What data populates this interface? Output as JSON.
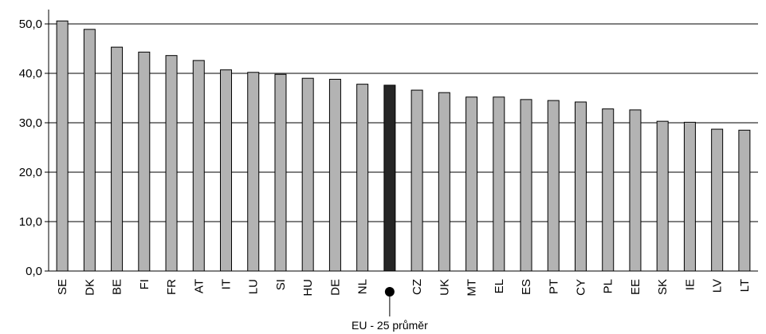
{
  "chart_data": {
    "type": "bar",
    "title": "",
    "xlabel": "",
    "ylabel": "",
    "ylim": [
      0,
      50
    ],
    "yticks": [
      "0,0",
      "10,0",
      "20,0",
      "30,0",
      "40,0",
      "50,0"
    ],
    "grid": "horizontal",
    "legend": "none",
    "categories": [
      "SE",
      "DK",
      "BE",
      "FI",
      "FR",
      "AT",
      "IT",
      "LU",
      "SI",
      "HU",
      "DE",
      "NL",
      "EU-25",
      "CZ",
      "UK",
      "MT",
      "EL",
      "ES",
      "PT",
      "CY",
      "PL",
      "EE",
      "SK",
      "IE",
      "LV",
      "LT"
    ],
    "tick_labels": [
      "SE",
      "DK",
      "BE",
      "FI",
      "FR",
      "AT",
      "IT",
      "LU",
      "SI",
      "HU",
      "DE",
      "NL",
      "",
      "CZ",
      "UK",
      "MT",
      "EL",
      "ES",
      "PT",
      "CY",
      "PL",
      "EE",
      "SK",
      "IE",
      "LV",
      "LT"
    ],
    "values": [
      50.6,
      48.9,
      45.3,
      44.3,
      43.6,
      42.6,
      40.7,
      40.2,
      39.8,
      39.0,
      38.8,
      37.8,
      37.6,
      36.6,
      36.1,
      35.2,
      35.2,
      34.7,
      34.5,
      34.2,
      32.8,
      32.6,
      30.3,
      30.1,
      28.7,
      28.5
    ],
    "highlight_category": "EU-25",
    "annotation": "EU - 25 průměr",
    "colors": {
      "bar": "#b3b3b3",
      "highlight": "#262626",
      "outline": "#000000",
      "grid": "#000000"
    }
  }
}
